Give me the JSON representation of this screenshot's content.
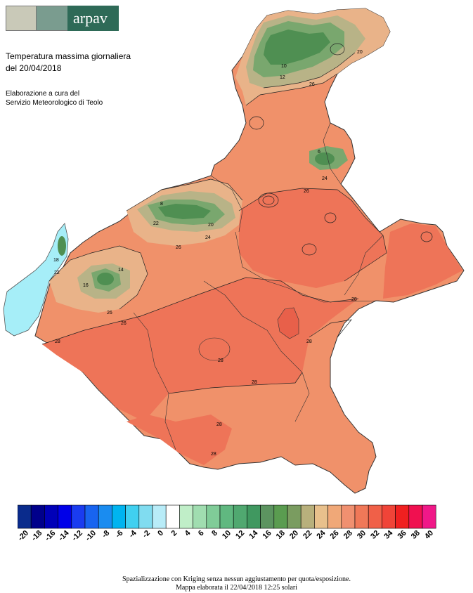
{
  "header": {
    "logo_text": "arpav",
    "title_line1": "Temperatura massima giornaliera",
    "title_line2": "del 20/04/2018",
    "credit_line1": "Elaborazione a cura del",
    "credit_line2": "Servizio Meteorologico di Teolo"
  },
  "colors": {
    "lake": "#a6eef8",
    "warmest": "#ee7458",
    "warm": "#f0916a",
    "mild": "#e9b389",
    "cool": "#b8b387",
    "cold": "#79a76e",
    "coldest": "#4f8f52"
  },
  "map": {
    "contour_labels": [
      "28",
      "28",
      "28",
      "28",
      "28",
      "28",
      "28",
      "26",
      "26",
      "26",
      "26",
      "26",
      "24",
      "24",
      "22",
      "22",
      "20",
      "20",
      "18",
      "16",
      "14",
      "12",
      "10",
      "8",
      "6"
    ]
  },
  "scale": {
    "labels": [
      "-20",
      "-18",
      "-16",
      "-14",
      "-12",
      "-10",
      "-8",
      "-6",
      "-4",
      "-2",
      "0",
      "2",
      "4",
      "6",
      "8",
      "10",
      "12",
      "14",
      "16",
      "18",
      "20",
      "22",
      "24",
      "26",
      "28",
      "30",
      "32",
      "34",
      "36",
      "38",
      "40"
    ],
    "colors": [
      "#0a2b8c",
      "#00008b",
      "#0000b8",
      "#0000e8",
      "#1a3cf0",
      "#1864f0",
      "#1a8cf0",
      "#00b4f0",
      "#40d0f0",
      "#80dcf0",
      "#b8ecf8",
      "#ffffff",
      "#c0eec8",
      "#a0ddb0",
      "#80cc98",
      "#60b880",
      "#50a870",
      "#409860",
      "#5c9460",
      "#5a9c50",
      "#7a9c60",
      "#b8b07c",
      "#e8c08c",
      "#f0a878",
      "#f09070",
      "#f07858",
      "#f06048",
      "#f04438",
      "#f02020",
      "#f01050",
      "#f01888"
    ]
  },
  "footer": {
    "line1": "Spazializzazione con Kriging senza nessun aggiustamento per quota/esposizione.",
    "line2": "Mappa elaborata il 22/04/2018 12:25 solari"
  }
}
